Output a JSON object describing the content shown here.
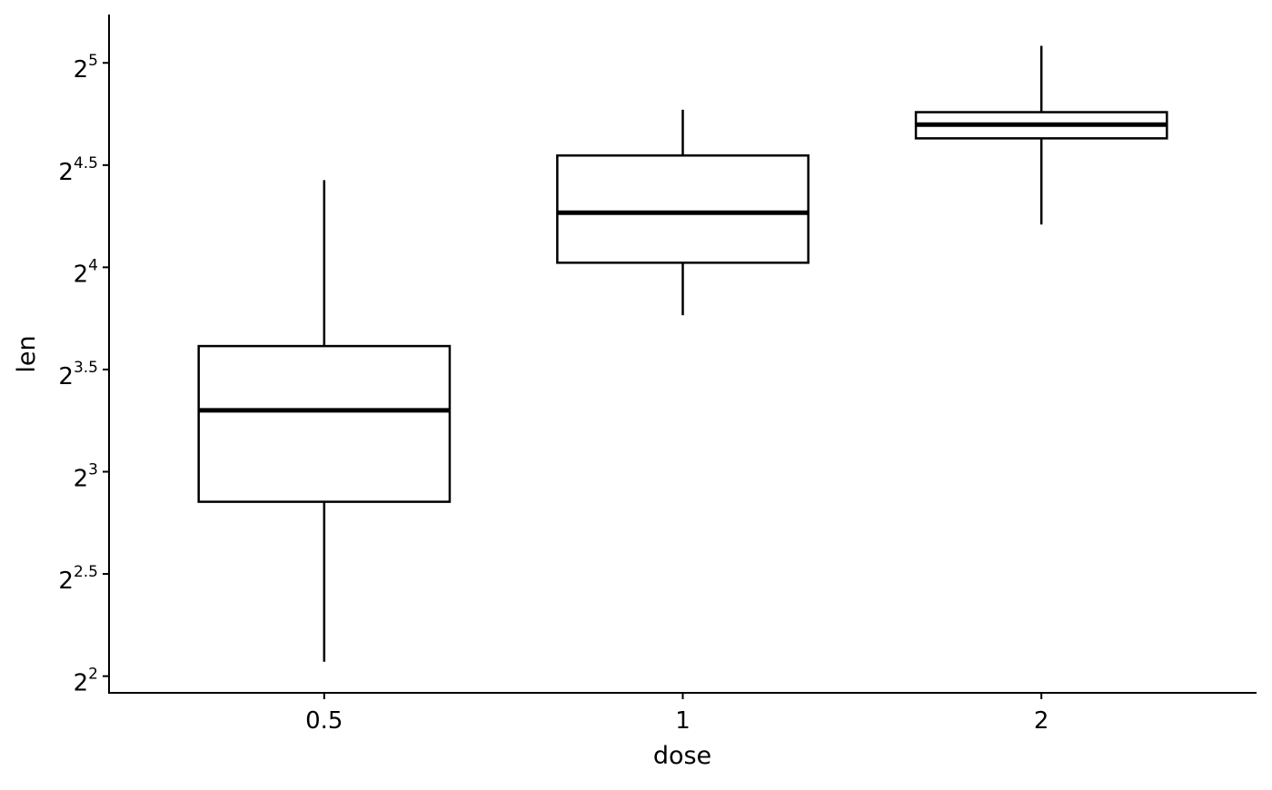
{
  "chart_data": {
    "type": "boxplot",
    "xlabel": "dose",
    "ylabel": "len",
    "y_scale": "log2",
    "ylim": [
      3.78,
      37.7
    ],
    "grid": false,
    "legend": "none",
    "categories": [
      "0.5",
      "1",
      "2"
    ],
    "y_ticks": [
      {
        "value": 4,
        "base": "2",
        "exp": "2"
      },
      {
        "value": 5.657,
        "base": "2",
        "exp": "2.5"
      },
      {
        "value": 8,
        "base": "2",
        "exp": "3"
      },
      {
        "value": 11.314,
        "base": "2",
        "exp": "3.5"
      },
      {
        "value": 16,
        "base": "2",
        "exp": "4"
      },
      {
        "value": 22.627,
        "base": "2",
        "exp": "4.5"
      },
      {
        "value": 32,
        "base": "2",
        "exp": "5"
      }
    ],
    "boxes": [
      {
        "category": "0.5",
        "min": 4.2,
        "q1": 7.225,
        "median": 9.85,
        "q3": 12.25,
        "max": 21.5
      },
      {
        "category": "1",
        "min": 13.6,
        "q1": 16.25,
        "median": 19.25,
        "q3": 23.375,
        "max": 27.3
      },
      {
        "category": "2",
        "min": 18.5,
        "q1": 24.775,
        "median": 25.95,
        "q3": 27.075,
        "max": 33.9
      }
    ],
    "colors": {
      "line": "#000000",
      "fill": "#ffffff"
    }
  }
}
